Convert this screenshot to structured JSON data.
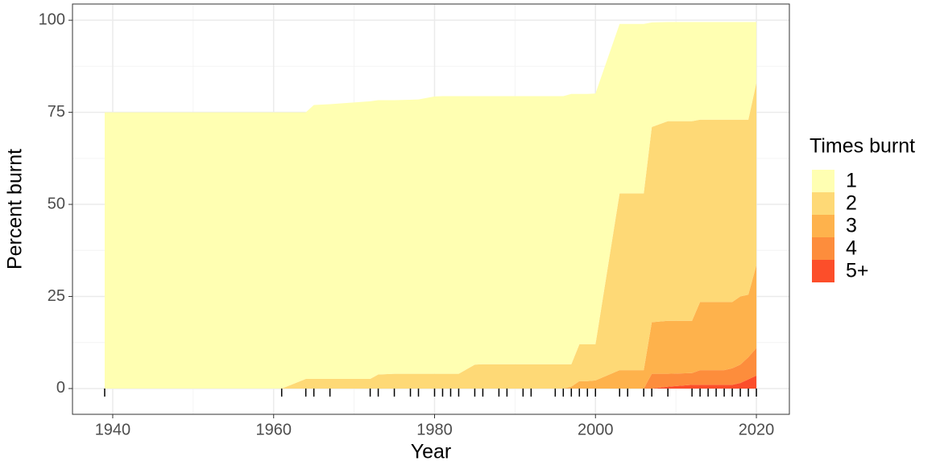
{
  "chart_data": {
    "type": "area",
    "stacked": true,
    "xlabel": "Year",
    "ylabel": "Percent burnt",
    "legend_title": "Times burnt",
    "legend_position": "right",
    "x": [
      1939,
      1961,
      1964,
      1965,
      1967,
      1972,
      1973,
      1975,
      1977,
      1978,
      1980,
      1981,
      1982,
      1983,
      1985,
      1986,
      1988,
      1989,
      1991,
      1992,
      1995,
      1996,
      1997,
      1998,
      1999,
      2000,
      2003,
      2004,
      2006,
      2007,
      2009,
      2012,
      2013,
      2014,
      2015,
      2016,
      2017,
      2018,
      2019,
      2020
    ],
    "series": [
      {
        "name": "1",
        "color": "#ffffb2",
        "values": [
          75,
          75,
          72.4,
          74.4,
          74.6,
          75.4,
          74.5,
          74.3,
          74.4,
          74.5,
          75.3,
          75.4,
          75.4,
          75.4,
          72.9,
          72.8,
          72.8,
          72.8,
          72.8,
          72.8,
          72.8,
          72.8,
          73.4,
          68,
          68,
          68.1,
          46,
          46,
          46,
          28.4,
          26.9,
          26.9,
          26.5,
          26.5,
          26.5,
          26.5,
          26.5,
          26.5,
          26.5,
          16.5
        ]
      },
      {
        "name": "2",
        "color": "#fed976",
        "values": [
          0,
          0,
          2.6,
          2.6,
          2.6,
          2.6,
          3.8,
          4,
          4,
          4,
          4,
          4,
          4,
          4,
          6.5,
          6.6,
          6.6,
          6.6,
          6.6,
          6.6,
          6.6,
          6.6,
          6.1,
          10,
          10,
          9.8,
          48,
          48,
          48,
          53,
          54.2,
          54.2,
          49.5,
          49.5,
          49.5,
          49.5,
          49.5,
          48,
          47.5,
          49.5
        ]
      },
      {
        "name": "3",
        "color": "#feb24c",
        "values": [
          0,
          0,
          0,
          0,
          0,
          0,
          0,
          0,
          0,
          0,
          0,
          0,
          0,
          0,
          0,
          0,
          0,
          0,
          0,
          0,
          0,
          0,
          0.5,
          2,
          2,
          2.2,
          5,
          5,
          5,
          14,
          14.4,
          14.2,
          18.5,
          18.5,
          18.5,
          18.5,
          18,
          18.5,
          17,
          22.5
        ]
      },
      {
        "name": "4",
        "color": "#fd8d3c",
        "values": [
          0,
          0,
          0,
          0,
          0,
          0,
          0,
          0,
          0,
          0,
          0,
          0,
          0,
          0,
          0,
          0,
          0,
          0,
          0,
          0,
          0,
          0,
          0,
          0,
          0,
          0,
          0,
          0,
          0,
          4,
          3.5,
          3.2,
          4,
          4,
          4,
          4,
          4.5,
          5,
          6,
          7.5
        ]
      },
      {
        "name": "5+",
        "color": "#fc4e2a",
        "values": [
          0,
          0,
          0,
          0,
          0,
          0,
          0,
          0,
          0,
          0,
          0,
          0,
          0,
          0,
          0,
          0,
          0,
          0,
          0,
          0,
          0,
          0,
          0,
          0,
          0,
          0,
          0,
          0,
          0,
          0,
          0.5,
          1,
          1,
          1,
          1,
          1,
          1,
          1.5,
          2.5,
          3.5
        ]
      }
    ],
    "rug": true,
    "xlim": [
      1935,
      2024.1
    ],
    "xticks": [
      1940,
      1960,
      1980,
      2000,
      2020
    ],
    "ylim": [
      -7,
      104.4
    ],
    "yticks": [
      0,
      25,
      50,
      75,
      100
    ],
    "grid": true
  }
}
